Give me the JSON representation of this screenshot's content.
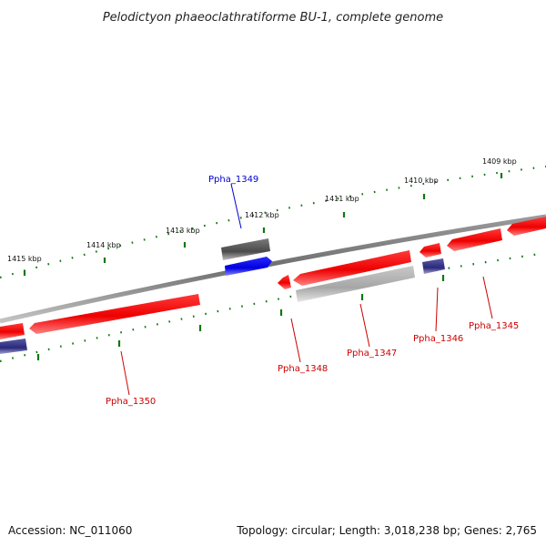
{
  "title": "Pelodictyon phaeoclathratiforme BU-1, complete genome",
  "footer": {
    "accession": "Accession: NC_011060",
    "summary": "Topology: circular; Length: 3,018,238 bp; Genes: 2,765"
  },
  "ruler_labels": [
    "1415 kbp",
    "1414 kbp",
    "1413 kbp",
    "1412 kbp",
    "1411 kbp",
    "1410 kbp",
    "1409 kbp"
  ],
  "gene_labels": [
    {
      "id": "Ppha_1349",
      "color": "#0000cc"
    },
    {
      "id": "Ppha_1350",
      "color": "#cc0000"
    },
    {
      "id": "Ppha_1348",
      "color": "#cc0000"
    },
    {
      "id": "Ppha_1347",
      "color": "#cc0000"
    },
    {
      "id": "Ppha_1346",
      "color": "#cc0000"
    },
    {
      "id": "Ppha_1345",
      "color": "#cc0000"
    }
  ],
  "colors": {
    "forward_gene": "#ff0000",
    "highlight_gene": "#0000ff",
    "pseudo_gene_dark": "#555555",
    "pseudo_gene_light": "#b0b0b0",
    "rna_gene": "#33338a",
    "backbone": "#808080",
    "tick": "#117711"
  }
}
